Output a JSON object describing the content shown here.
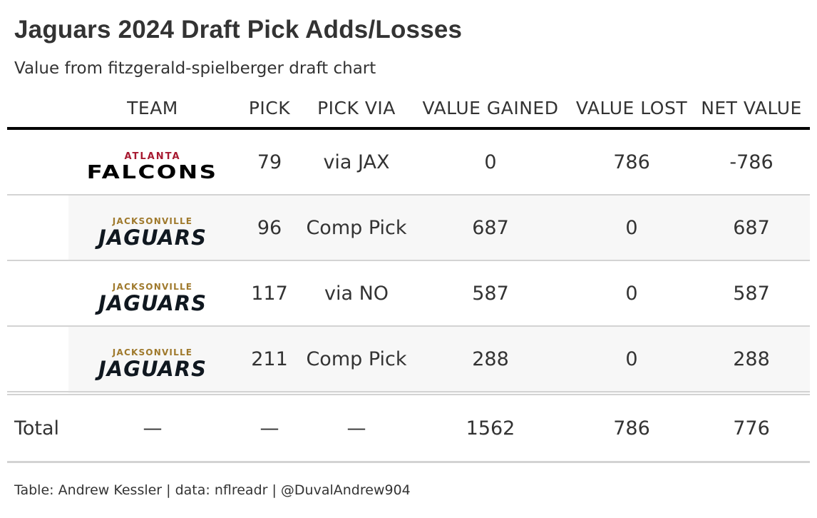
{
  "title": "Jaguars 2024 Draft Pick Adds/Losses",
  "subtitle": "Value from fitzgerald-spielberger draft chart",
  "columns": [
    "TEAM",
    "PICK",
    "PICK VIA",
    "VALUE GAINED",
    "VALUE LOST",
    "NET VALUE"
  ],
  "rows": [
    {
      "team_logo": {
        "city": "ATLANTA",
        "name": "FALCONS"
      },
      "pick": "79",
      "via": "via JAX",
      "gained": "0",
      "lost": "786",
      "net": "-786"
    },
    {
      "team_logo": {
        "city": "JACKSONVILLE",
        "name": "JAGUARS"
      },
      "pick": "96",
      "via": "Comp Pick",
      "gained": "687",
      "lost": "0",
      "net": "687"
    },
    {
      "team_logo": {
        "city": "JACKSONVILLE",
        "name": "JAGUARS"
      },
      "pick": "117",
      "via": "via NO",
      "gained": "587",
      "lost": "0",
      "net": "587"
    },
    {
      "team_logo": {
        "city": "JACKSONVILLE",
        "name": "JAGUARS"
      },
      "pick": "211",
      "via": "Comp Pick",
      "gained": "288",
      "lost": "0",
      "net": "288"
    }
  ],
  "total": {
    "label": "Total",
    "team": "—",
    "pick": "—",
    "via": "—",
    "gained": "1562",
    "lost": "786",
    "net": "776"
  },
  "footer": "Table: Andrew Kessler | data: nflreadr | @DuvalAndrew904",
  "colors": {
    "falcons_red": "#a71930",
    "jaguars_gold": "#9f792c",
    "stripe": "#f7f7f7",
    "rule": "#d3d3d3"
  }
}
